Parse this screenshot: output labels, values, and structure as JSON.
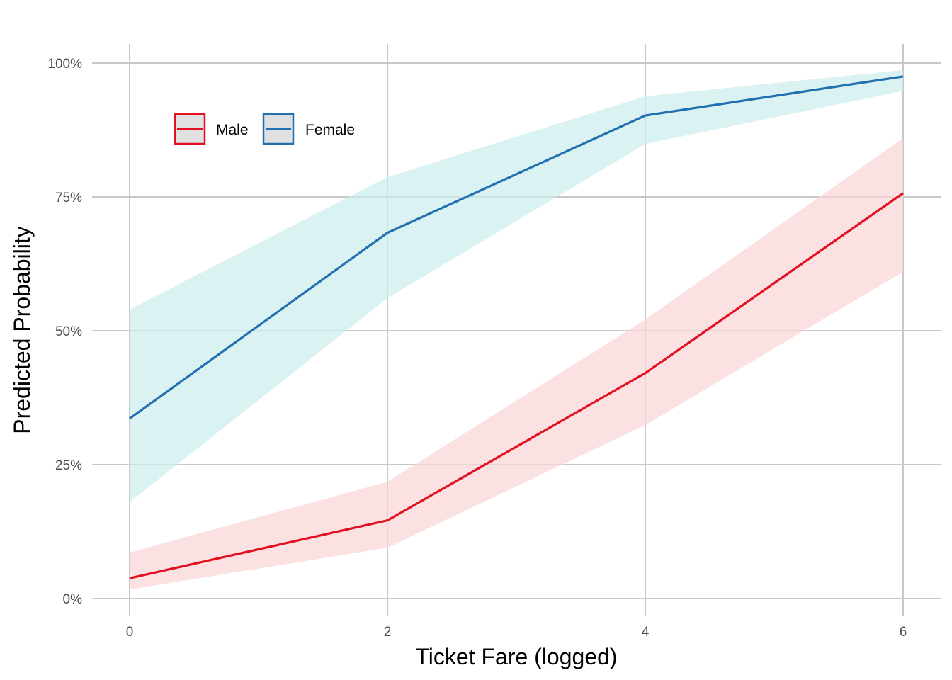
{
  "chart_data": {
    "type": "line",
    "title": "",
    "xlabel": "Ticket Fare (logged)",
    "ylabel": "Predicted Probability",
    "xlim": [
      -0.3,
      6.3
    ],
    "ylim": [
      -0.03,
      1.0
    ],
    "x_ticks": [
      0,
      2,
      4,
      6
    ],
    "x_tick_labels": [
      "0",
      "2",
      "4",
      "6"
    ],
    "y_ticks": [
      0,
      0.25,
      0.5,
      0.75,
      1.0
    ],
    "y_tick_labels": [
      "0%",
      "25%",
      "50%",
      "75%",
      "100%"
    ],
    "grid": true,
    "legend_position": "top-left",
    "x": [
      0,
      2,
      4,
      6
    ],
    "series": [
      {
        "name": "Male",
        "color": "#e3101f",
        "ribbon_color": "#f9d4d6",
        "values": [
          0.038,
          0.146,
          0.421,
          0.757
        ],
        "lower": [
          0.017,
          0.095,
          0.324,
          0.61
        ],
        "upper": [
          0.086,
          0.218,
          0.521,
          0.86
        ]
      },
      {
        "name": "Female",
        "color": "#2270b0",
        "ribbon_color": "#ccedee",
        "values": [
          0.336,
          0.683,
          0.902,
          0.975
        ],
        "lower": [
          0.18,
          0.561,
          0.849,
          0.948
        ],
        "upper": [
          0.54,
          0.787,
          0.938,
          0.987
        ]
      }
    ]
  }
}
